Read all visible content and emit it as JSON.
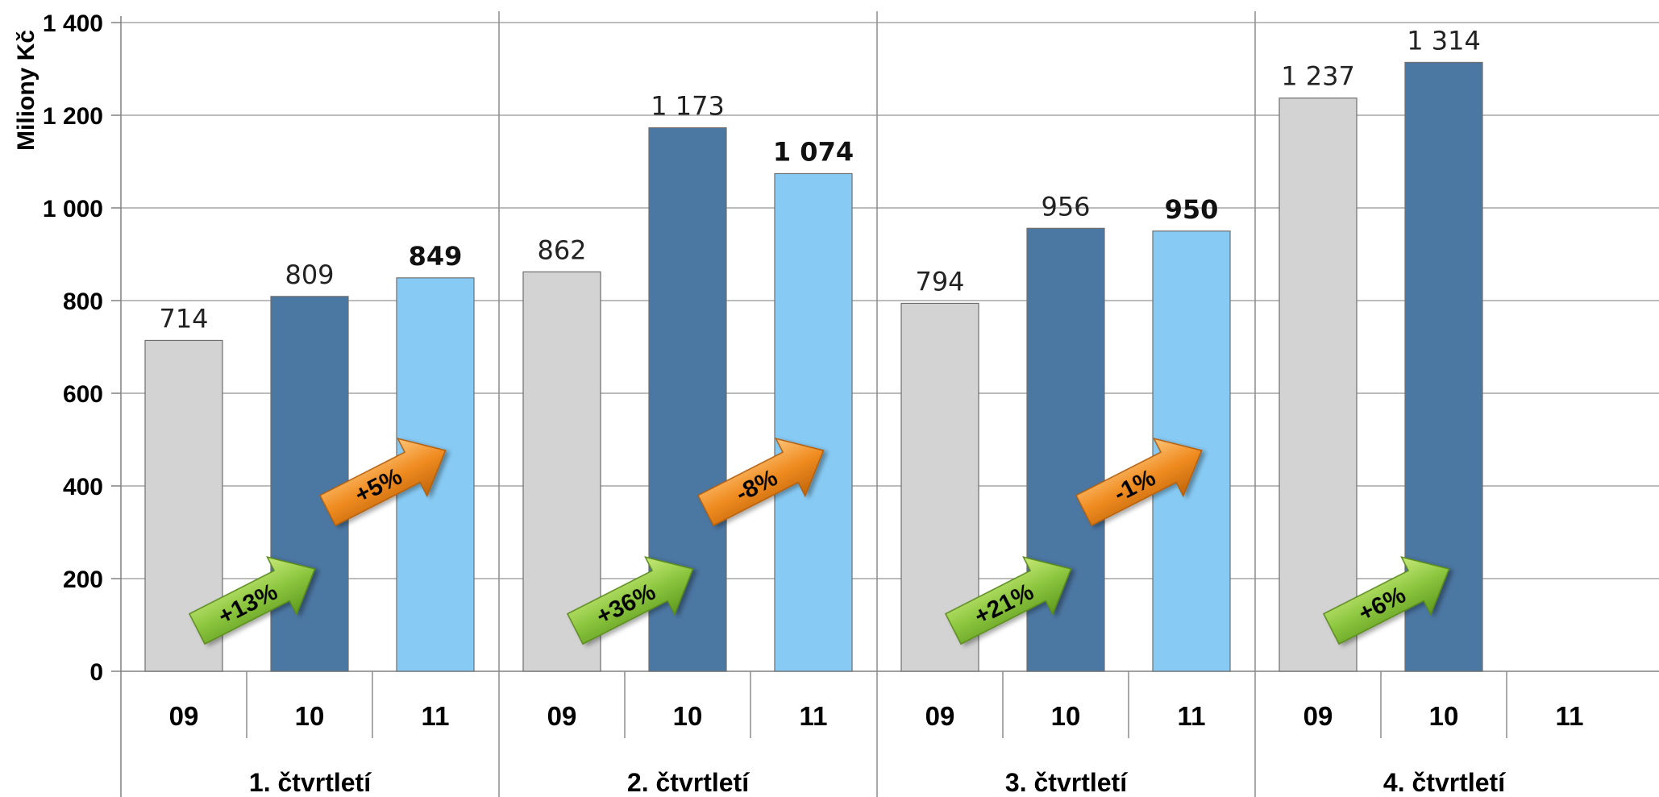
{
  "colors": {
    "y09": "#d3d3d3",
    "y10": "#4b77a3",
    "y11": "#87cbf5",
    "arrow_green": "#8cc63f",
    "arrow_orange": "#f08c21",
    "grid": "#a6a6a6"
  },
  "chart_data": {
    "type": "bar",
    "ylabel": "Miliony Kč",
    "ylim": [
      0,
      1400
    ],
    "yticks": [
      0,
      200,
      400,
      600,
      800,
      1000,
      1200,
      1400
    ],
    "ytick_labels": [
      "0",
      "200",
      "400",
      "600",
      "800",
      "1 000",
      "1 200",
      "1 400"
    ],
    "quarters": [
      {
        "label": "1. čtvrtletí",
        "bars": [
          {
            "year": "09",
            "value": 714,
            "label": "714",
            "bold": false
          },
          {
            "year": "10",
            "value": 809,
            "label": "809",
            "bold": false
          },
          {
            "year": "11",
            "value": 849,
            "label": "849",
            "bold": true
          }
        ],
        "arrows": [
          {
            "text": "+13%",
            "color": "green",
            "from_bar": 0
          },
          {
            "text": "+5%",
            "color": "orange",
            "from_bar": 1
          }
        ]
      },
      {
        "label": "2. čtvrtletí",
        "bars": [
          {
            "year": "09",
            "value": 862,
            "label": "862",
            "bold": false
          },
          {
            "year": "10",
            "value": 1173,
            "label": "1 173",
            "bold": false
          },
          {
            "year": "11",
            "value": 1074,
            "label": "1 074",
            "bold": true
          }
        ],
        "arrows": [
          {
            "text": "+36%",
            "color": "green",
            "from_bar": 0
          },
          {
            "text": "-8%",
            "color": "orange",
            "from_bar": 1
          }
        ]
      },
      {
        "label": "3. čtvrtletí",
        "bars": [
          {
            "year": "09",
            "value": 794,
            "label": "794",
            "bold": false
          },
          {
            "year": "10",
            "value": 956,
            "label": "956",
            "bold": false
          },
          {
            "year": "11",
            "value": 950,
            "label": "950",
            "bold": true
          }
        ],
        "arrows": [
          {
            "text": "+21%",
            "color": "green",
            "from_bar": 0
          },
          {
            "text": "-1%",
            "color": "orange",
            "from_bar": 1
          }
        ]
      },
      {
        "label": "4. čtvrtletí",
        "bars": [
          {
            "year": "09",
            "value": 1237,
            "label": "1 237",
            "bold": false
          },
          {
            "year": "10",
            "value": 1314,
            "label": "1 314",
            "bold": false
          },
          {
            "year": "11",
            "value": null,
            "label": "",
            "bold": false
          }
        ],
        "arrows": [
          {
            "text": "+6%",
            "color": "green",
            "from_bar": 0
          }
        ]
      }
    ]
  }
}
